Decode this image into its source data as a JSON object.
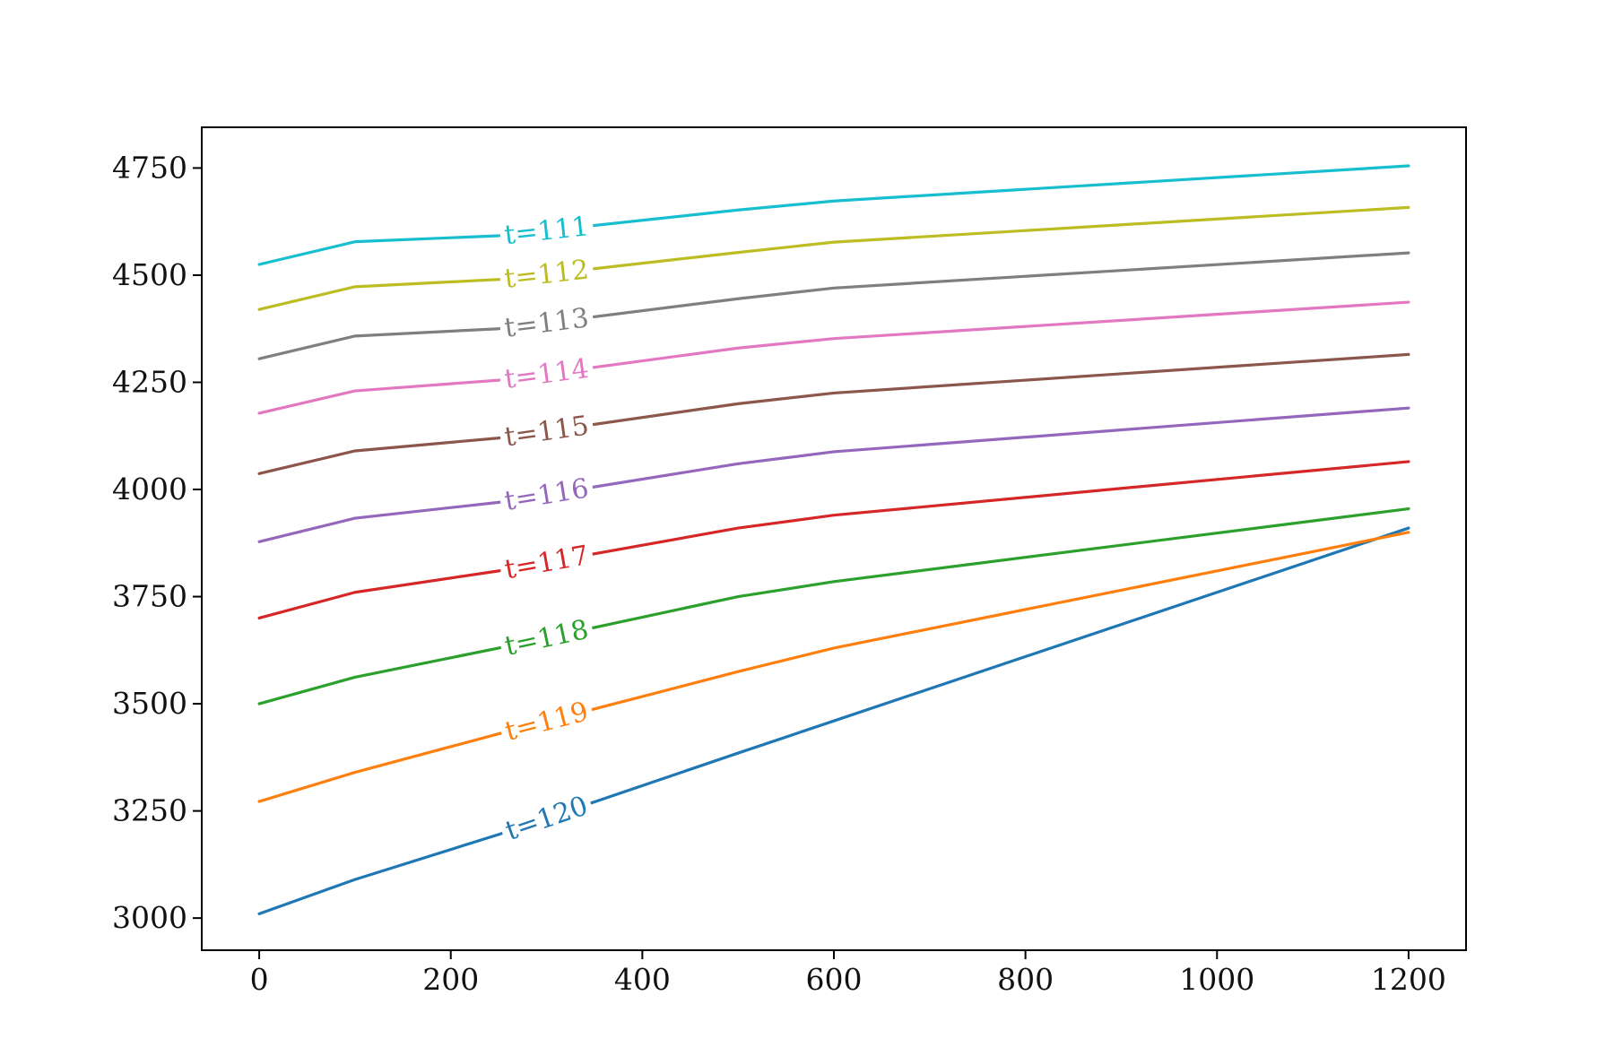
{
  "chart_data": {
    "type": "line",
    "title": "",
    "xlabel": "",
    "ylabel": "",
    "x": [
      0,
      100,
      250,
      500,
      600,
      1200
    ],
    "xlim": [
      -60,
      1260
    ],
    "ylim": [
      2925,
      4845
    ],
    "xticks": [
      "0",
      "200",
      "400",
      "600",
      "800",
      "1000",
      "1200"
    ],
    "yticks": [
      "3000",
      "3250",
      "3500",
      "3750",
      "4000",
      "4250",
      "4500",
      "4750"
    ],
    "grid": false,
    "legend": "none",
    "series": [
      {
        "name": "t=120",
        "color": "#1f77b4",
        "values": [
          3010,
          3090,
          3195,
          3385,
          3460,
          3910
        ]
      },
      {
        "name": "t=119",
        "color": "#ff7f0e",
        "values": [
          3272,
          3340,
          3430,
          3575,
          3630,
          3900
        ]
      },
      {
        "name": "t=118",
        "color": "#2ca02c",
        "values": [
          3500,
          3562,
          3630,
          3750,
          3785,
          3955
        ]
      },
      {
        "name": "t=117",
        "color": "#d62728",
        "values": [
          3700,
          3760,
          3810,
          3910,
          3940,
          4065
        ]
      },
      {
        "name": "t=116",
        "color": "#9467bd",
        "values": [
          3878,
          3933,
          3970,
          4060,
          4088,
          4190
        ]
      },
      {
        "name": "t=115",
        "color": "#8c564b",
        "values": [
          4037,
          4090,
          4120,
          4200,
          4225,
          4315
        ]
      },
      {
        "name": "t=114",
        "color": "#e377c2",
        "values": [
          4178,
          4230,
          4255,
          4330,
          4352,
          4437
        ]
      },
      {
        "name": "t=113",
        "color": "#7f7f7f",
        "values": [
          4305,
          4358,
          4375,
          4445,
          4470,
          4552
        ]
      },
      {
        "name": "t=112",
        "color": "#bcbd22",
        "values": [
          4420,
          4473,
          4490,
          4553,
          4577,
          4658
        ]
      },
      {
        "name": "t=111",
        "color": "#17becf",
        "values": [
          4525,
          4578,
          4592,
          4652,
          4673,
          4755
        ]
      }
    ]
  }
}
